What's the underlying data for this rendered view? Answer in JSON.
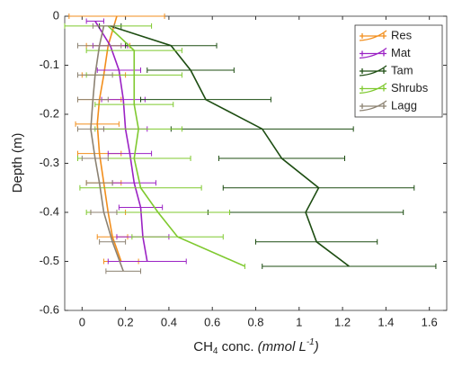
{
  "chart_data": {
    "type": "line",
    "orientation": "horizontal-errorbar",
    "xlabel": {
      "main": "CH",
      "sub": "4",
      "mid": " conc. ",
      "unit": "(mmol L",
      "sup": "-1",
      "end": ")"
    },
    "ylabel": "Depth (m)",
    "xlim": [
      -0.08,
      1.68
    ],
    "ylim": [
      -0.6,
      0
    ],
    "xticks": [
      0,
      0.2,
      0.4,
      0.6,
      0.8,
      1,
      1.2,
      1.4,
      1.6
    ],
    "yticks": [
      0,
      -0.1,
      -0.2,
      -0.3,
      -0.4,
      -0.5,
      -0.6
    ],
    "legend": "top-right",
    "grid": false,
    "series": [
      {
        "name": "Res",
        "color": "#f28e1c",
        "depth": [
          0,
          -0.06,
          -0.12,
          -0.17,
          -0.22,
          -0.28,
          -0.34,
          -0.4,
          -0.45,
          -0.5
        ],
        "values": [
          0.16,
          0.12,
          0.1,
          0.08,
          0.07,
          0.08,
          0.1,
          0.12,
          0.14,
          0.18
        ],
        "errors": [
          0.22,
          0.1,
          0.1,
          0.1,
          0.1,
          0.1,
          0.08,
          0.08,
          0.07,
          0.08
        ]
      },
      {
        "name": "Mat",
        "color": "#9b22c4",
        "depth": [
          -0.01,
          -0.06,
          -0.11,
          -0.17,
          -0.23,
          -0.28,
          -0.34,
          -0.39,
          -0.45,
          -0.5
        ],
        "values": [
          0.06,
          0.13,
          0.17,
          0.19,
          0.2,
          0.22,
          0.24,
          0.27,
          0.28,
          0.3
        ],
        "errors": [
          0.04,
          0.08,
          0.1,
          0.1,
          0.1,
          0.1,
          0.1,
          0.1,
          0.12,
          0.18
        ]
      },
      {
        "name": "Tam",
        "color": "#1d4d12",
        "depth": [
          -0.02,
          -0.06,
          -0.11,
          -0.17,
          -0.23,
          -0.29,
          -0.35,
          -0.4,
          -0.46,
          -0.51
        ],
        "values": [
          0.13,
          0.41,
          0.5,
          0.57,
          0.83,
          0.92,
          1.09,
          1.03,
          1.08,
          1.23
        ],
        "errors": [
          0.05,
          0.21,
          0.2,
          0.3,
          0.42,
          0.29,
          0.44,
          0.45,
          0.28,
          0.4
        ]
      },
      {
        "name": "Shrubs",
        "color": "#7fc92f",
        "depth": [
          -0.02,
          -0.07,
          -0.12,
          -0.18,
          -0.23,
          -0.29,
          -0.35,
          -0.4,
          -0.45,
          -0.51
        ],
        "values": [
          0.12,
          0.24,
          0.24,
          0.24,
          0.26,
          0.24,
          0.27,
          0.35,
          0.44,
          0.75
        ],
        "errors": [
          0.2,
          0.22,
          0.22,
          0.18,
          0.2,
          0.26,
          0.28,
          0.33,
          0.21,
          0
        ]
      },
      {
        "name": "Lagg",
        "color": "#8c8272",
        "depth": [
          -0.02,
          -0.06,
          -0.12,
          -0.17,
          -0.23,
          -0.29,
          -0.34,
          -0.4,
          -0.46,
          -0.52
        ],
        "values": [
          0.1,
          0.08,
          0.06,
          0.05,
          0.04,
          0.06,
          0.08,
          0.1,
          0.14,
          0.19
        ],
        "errors": [
          0.05,
          0.1,
          0.08,
          0.07,
          0.06,
          0.06,
          0.06,
          0.06,
          0.06,
          0.08
        ]
      }
    ]
  }
}
